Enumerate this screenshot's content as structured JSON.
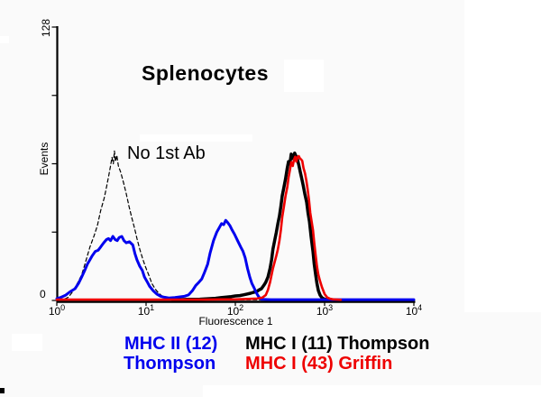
{
  "window": {
    "description": "Flow cytometry histogram overlay slide"
  },
  "chart_data": {
    "type": "line",
    "subtype": "flow-cytometry-histogram-overlay",
    "title": "Splenocytes",
    "annotation": "No 1st Ab",
    "xlabel": "Fluorescence 1",
    "ylabel": "Events",
    "x_scale": "log",
    "x_range": [
      1,
      10000
    ],
    "y_range": [
      0,
      128
    ],
    "x_tick_exponents": [
      0,
      1,
      2,
      3,
      4
    ],
    "y_tick_labels": {
      "max": "128",
      "min": "0"
    },
    "grid": false,
    "legend_position": "below",
    "series": [
      {
        "name": "no-1st-ab",
        "label": "No 1st Ab",
        "color": "#000000",
        "dash": "4 3",
        "width": 1.2,
        "points": [
          [
            1.05,
            0.2
          ],
          [
            1.2,
            0.5
          ],
          [
            1.35,
            1.5
          ],
          [
            1.5,
            4
          ],
          [
            1.7,
            8
          ],
          [
            1.9,
            12
          ],
          [
            2.1,
            18
          ],
          [
            2.35,
            25
          ],
          [
            2.6,
            30
          ],
          [
            2.85,
            35
          ],
          [
            3.1,
            42
          ],
          [
            3.4,
            48
          ],
          [
            3.6,
            53
          ],
          [
            3.8,
            58
          ],
          [
            4.0,
            63
          ],
          [
            4.15,
            67
          ],
          [
            4.3,
            64
          ],
          [
            4.42,
            70
          ],
          [
            4.55,
            65
          ],
          [
            4.7,
            68
          ],
          [
            4.9,
            63
          ],
          [
            5.2,
            60
          ],
          [
            5.6,
            55
          ],
          [
            6.0,
            50
          ],
          [
            6.45,
            44
          ],
          [
            6.9,
            39
          ],
          [
            7.4,
            34
          ],
          [
            7.9,
            29
          ],
          [
            8.5,
            24
          ],
          [
            9.1,
            20
          ],
          [
            9.8,
            16
          ],
          [
            10.7,
            12
          ],
          [
            11.6,
            8
          ],
          [
            12.6,
            5.5
          ],
          [
            13.8,
            3.5
          ],
          [
            15.2,
            2
          ],
          [
            17,
            1.2
          ],
          [
            19,
            0.6
          ],
          [
            23,
            0.4
          ],
          [
            30,
            0.3
          ],
          [
            45,
            0.3
          ],
          [
            70,
            0.3
          ],
          [
            110,
            0.3
          ],
          [
            160,
            0.3
          ],
          [
            200,
            0.3
          ]
        ]
      },
      {
        "name": "mhc-i-thompson",
        "label": "MHC I (11) Thompson",
        "color": "#000000",
        "width": 3.5,
        "points": [
          [
            20,
            0.3
          ],
          [
            30,
            0.5
          ],
          [
            40,
            0.6
          ],
          [
            49,
            0.8
          ],
          [
            60,
            1
          ],
          [
            69,
            1.3
          ],
          [
            80,
            1.6
          ],
          [
            90,
            1.8
          ],
          [
            100,
            2.1
          ],
          [
            112,
            2.3
          ],
          [
            123,
            2.6
          ],
          [
            135,
            3
          ],
          [
            148,
            3.4
          ],
          [
            160,
            3.8
          ],
          [
            174,
            4.2
          ],
          [
            185,
            5
          ],
          [
            196,
            5.5
          ],
          [
            208,
            7
          ],
          [
            219,
            8.5
          ],
          [
            232,
            11
          ],
          [
            245,
            15
          ],
          [
            255,
            19
          ],
          [
            264,
            24
          ],
          [
            276,
            28
          ],
          [
            288,
            32
          ],
          [
            300,
            36
          ],
          [
            312,
            39.5
          ],
          [
            324,
            44
          ],
          [
            335,
            49
          ],
          [
            350,
            53
          ],
          [
            365,
            57
          ],
          [
            382,
            62
          ],
          [
            394,
            65
          ],
          [
            408,
            64
          ],
          [
            423,
            68.5
          ],
          [
            440,
            66.5
          ],
          [
            462,
            69
          ],
          [
            480,
            67.5
          ],
          [
            500,
            65.5
          ],
          [
            517,
            63
          ],
          [
            535,
            60
          ],
          [
            555,
            57
          ],
          [
            575,
            54
          ],
          [
            600,
            50
          ],
          [
            630,
            46
          ],
          [
            652,
            41
          ],
          [
            676,
            37
          ],
          [
            705,
            30
          ],
          [
            740,
            23
          ],
          [
            765,
            17
          ],
          [
            794,
            12
          ],
          [
            820,
            8
          ],
          [
            851,
            4.6
          ],
          [
            890,
            2.5
          ],
          [
            933,
            1.3
          ],
          [
            1000,
            0.6
          ],
          [
            1120,
            0.3
          ],
          [
            1300,
            0.2
          ]
        ]
      },
      {
        "name": "mhc-ii-thompson",
        "label": "MHC II (12) Thompson",
        "color": "#0000ee",
        "width": 3,
        "points": [
          [
            1.0,
            0.8
          ],
          [
            1.12,
            1.5
          ],
          [
            1.26,
            2.5
          ],
          [
            1.4,
            4
          ],
          [
            1.6,
            5.5
          ],
          [
            1.75,
            8
          ],
          [
            1.9,
            11
          ],
          [
            2.05,
            14
          ],
          [
            2.2,
            17
          ],
          [
            2.35,
            19
          ],
          [
            2.5,
            21
          ],
          [
            2.7,
            23
          ],
          [
            2.9,
            23.5
          ],
          [
            3.1,
            25
          ],
          [
            3.35,
            27
          ],
          [
            3.6,
            28.5
          ],
          [
            3.8,
            29
          ],
          [
            4.0,
            28
          ],
          [
            4.25,
            30
          ],
          [
            4.5,
            28.5
          ],
          [
            4.75,
            28
          ],
          [
            5.0,
            29.5
          ],
          [
            5.35,
            30
          ],
          [
            5.65,
            28
          ],
          [
            6.0,
            27
          ],
          [
            6.5,
            27.5
          ],
          [
            7.1,
            26
          ],
          [
            7.5,
            22
          ],
          [
            7.9,
            19
          ],
          [
            8.5,
            16
          ],
          [
            9.1,
            14
          ],
          [
            9.6,
            11
          ],
          [
            10.2,
            9
          ],
          [
            11,
            6.5
          ],
          [
            12,
            4.6
          ],
          [
            13.2,
            3
          ],
          [
            14.5,
            2
          ],
          [
            16,
            1.5
          ],
          [
            18,
            1.2
          ],
          [
            21,
            1.4
          ],
          [
            24,
            1.7
          ],
          [
            27,
            2
          ],
          [
            30,
            2.6
          ],
          [
            33,
            4.5
          ],
          [
            36,
            7
          ],
          [
            39,
            8.5
          ],
          [
            42,
            10
          ],
          [
            45,
            13
          ],
          [
            49,
            17
          ],
          [
            52,
            22
          ],
          [
            57,
            28
          ],
          [
            62,
            32
          ],
          [
            66,
            34
          ],
          [
            70,
            36
          ],
          [
            74,
            35.5
          ],
          [
            78,
            37.5
          ],
          [
            82,
            36.5
          ],
          [
            87,
            35
          ],
          [
            92,
            33
          ],
          [
            98,
            31
          ],
          [
            106,
            28
          ],
          [
            115,
            25
          ],
          [
            122,
            23
          ],
          [
            129,
            20
          ],
          [
            137,
            15
          ],
          [
            145,
            11
          ],
          [
            153,
            8
          ],
          [
            162,
            6
          ],
          [
            170,
            4
          ],
          [
            178,
            2.5
          ],
          [
            187,
            1.2
          ],
          [
            196,
            0.5
          ],
          [
            250,
            0.4
          ],
          [
            400,
            0.4
          ],
          [
            700,
            0.4
          ],
          [
            1500,
            0.4
          ],
          [
            4000,
            0.4
          ],
          [
            10000,
            0.4
          ]
        ]
      },
      {
        "name": "mhc-i-griffin",
        "label": "MHC I (43) Griffin",
        "color": "#ee0000",
        "width": 2.6,
        "points": [
          [
            1,
            0.4
          ],
          [
            1.6,
            0.4
          ],
          [
            2.6,
            0.4
          ],
          [
            4.5,
            0.4
          ],
          [
            8,
            0.4
          ],
          [
            14,
            0.4
          ],
          [
            25,
            0.4
          ],
          [
            45,
            0.4
          ],
          [
            70,
            0.5
          ],
          [
            100,
            0.5
          ],
          [
            140,
            0.7
          ],
          [
            175,
            0.9
          ],
          [
            200,
            1.3
          ],
          [
            219,
            2.5
          ],
          [
            232,
            5
          ],
          [
            245,
            8.5
          ],
          [
            255,
            12
          ],
          [
            264,
            15
          ],
          [
            276,
            18
          ],
          [
            288,
            21
          ],
          [
            300,
            24
          ],
          [
            312,
            28
          ],
          [
            324,
            33
          ],
          [
            335,
            39
          ],
          [
            350,
            44
          ],
          [
            365,
            49
          ],
          [
            382,
            53
          ],
          [
            394,
            57.5
          ],
          [
            408,
            61
          ],
          [
            423,
            64.7
          ],
          [
            440,
            63
          ],
          [
            455,
            66
          ],
          [
            468,
            67.3
          ],
          [
            482,
            65
          ],
          [
            496,
            67
          ],
          [
            513,
            67.6
          ],
          [
            530,
            66.5
          ],
          [
            547,
            66
          ],
          [
            562,
            65.3
          ],
          [
            580,
            62
          ],
          [
            603,
            59.5
          ],
          [
            625,
            56
          ],
          [
            646,
            52
          ],
          [
            668,
            47
          ],
          [
            691,
            41
          ],
          [
            715,
            37
          ],
          [
            740,
            33
          ],
          [
            765,
            27
          ],
          [
            794,
            21
          ],
          [
            820,
            16
          ],
          [
            851,
            12
          ],
          [
            890,
            9
          ],
          [
            933,
            6.3
          ],
          [
            1000,
            3
          ],
          [
            1070,
            1.4
          ],
          [
            1150,
            0.8
          ],
          [
            1250,
            0.5
          ],
          [
            1400,
            0.4
          ],
          [
            1520,
            0.3
          ]
        ]
      }
    ]
  },
  "legend": {
    "items": [
      {
        "color": "#0000ee",
        "lines": [
          "MHC II (12)",
          "Thompson"
        ]
      },
      {
        "color": "#000000",
        "lines": [
          "MHC I (11) Thompson"
        ]
      },
      {
        "color": "#ee0000",
        "lines": [
          "MHC I (43) Griffin"
        ]
      }
    ]
  }
}
